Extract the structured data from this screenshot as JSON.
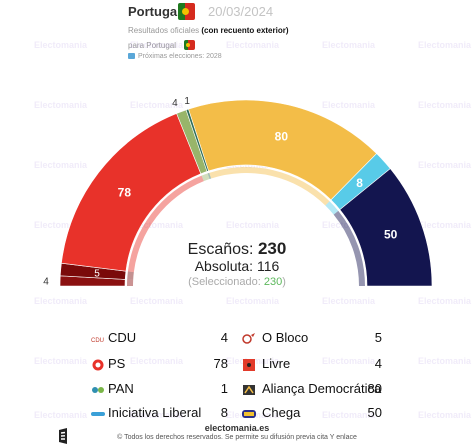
{
  "header": {
    "country": "Portugal",
    "date": "20/03/2024",
    "subtitle_prefix": "Resultados oficiales ",
    "subtitle_bold": "(con recuento exterior)",
    "for_label": "para Portugal",
    "next_elections": "Próximas elecciones: 2028"
  },
  "colors": {
    "flag_green": "#1f7a1f",
    "flag_red": "#d52b1e",
    "flag_yellow": "#f2c200"
  },
  "summary": {
    "seats_label": "Escaños:",
    "seats_total": "230",
    "absolute_label": "Absoluta:",
    "absolute_value": "116",
    "selected_prefix": "(Seleccionado: ",
    "selected_value": "230",
    "selected_suffix": ")"
  },
  "chart_data": {
    "type": "pie",
    "subtype": "parliament-hemicycle",
    "total_seats": 230,
    "majority": 116,
    "series": [
      {
        "name": "CDU",
        "value": 4,
        "color": "#8b1010"
      },
      {
        "name": "O Bloco",
        "value": 5,
        "color": "#7a0a0a"
      },
      {
        "name": "PS",
        "value": 78,
        "color": "#e8322a"
      },
      {
        "name": "Livre",
        "value": 4,
        "color": "#98b56a"
      },
      {
        "name": "PAN",
        "value": 1,
        "color": "#2f6e5a"
      },
      {
        "name": "Aliança Democrática",
        "value": 80,
        "color": "#f3bd48"
      },
      {
        "name": "Iniciativa Liberal",
        "value": 8,
        "color": "#58cbe8"
      },
      {
        "name": "Chega",
        "value": 50,
        "color": "#13154f"
      }
    ],
    "arc_labels": [
      "4",
      "5",
      "78",
      "4",
      "1",
      "80",
      "8",
      "50"
    ]
  },
  "legend": [
    {
      "name": "CDU",
      "seats": "4",
      "icon": "cdu-logo-icon",
      "color": "#c0392b"
    },
    {
      "name": "O Bloco",
      "seats": "5",
      "icon": "bloco-star-icon",
      "color": "#c0392b"
    },
    {
      "name": "PS",
      "seats": "78",
      "icon": "ps-fist-icon",
      "color": "#e8322a"
    },
    {
      "name": "Livre",
      "seats": "4",
      "icon": "livre-poppy-icon",
      "color": "#e23a2a"
    },
    {
      "name": "PAN",
      "seats": "1",
      "icon": "pan-logo-icon",
      "color": "#2f8fb0"
    },
    {
      "name": "Aliança Democrática",
      "seats": "80",
      "icon": "ad-logo-icon",
      "color": "#333333"
    },
    {
      "name": "Iniciativa Liberal",
      "seats": "8",
      "icon": "il-logo-icon",
      "color": "#3aa0d8"
    },
    {
      "name": "Chega",
      "seats": "50",
      "icon": "chega-logo-icon",
      "color": "#2a2f8a"
    }
  ],
  "footer": {
    "brand": "electomania.es",
    "copyright": "© Todos los derechos reservados. Se permite su difusión previa cita Y enlace"
  },
  "watermark": "Electomania"
}
